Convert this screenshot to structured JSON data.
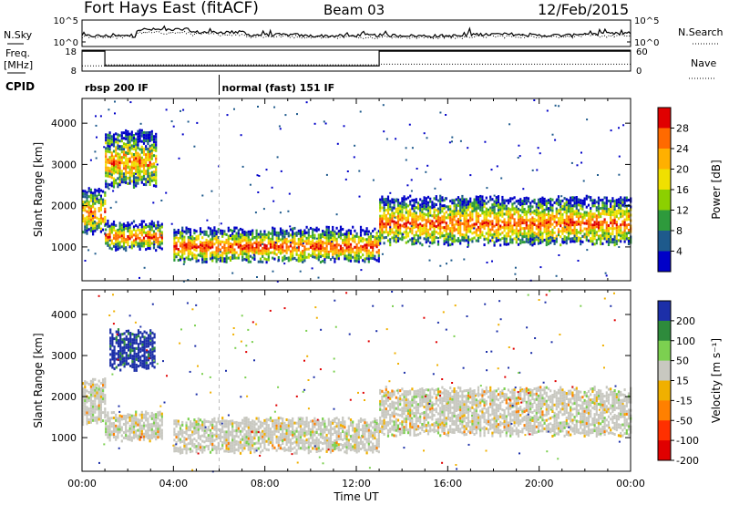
{
  "header": {
    "station": "Fort Hays East (fitACF)",
    "beam": "Beam 03",
    "date": "12/Feb/2015"
  },
  "strip_labels": {
    "nsky": "N.Sky",
    "nsearch": "N.Search",
    "freq_line1": "Freq.",
    "freq_line2": "[MHz]",
    "nave": "Nave",
    "cpid": "CPID"
  },
  "chart_data": [
    {
      "type": "line",
      "name": "noise",
      "y_left_ticks": [
        "10^5",
        "10^0"
      ],
      "y_right_ticks": [
        "10^5",
        "10^0"
      ],
      "nsky_level": [
        2.0,
        3.2,
        2.7,
        2.2,
        2.0,
        2.1,
        2.0,
        2.3,
        2.1,
        2.4
      ],
      "nsearch_level": [
        1.8,
        2.6,
        2.3,
        1.9,
        1.8,
        1.8,
        1.7,
        1.9,
        1.9,
        2.0
      ]
    },
    {
      "type": "line",
      "name": "frequency-nave",
      "y_left_ticks": [
        "18",
        "8"
      ],
      "y_right_ticks": [
        "60",
        "0"
      ],
      "freq_steps": [
        {
          "t": 0.0,
          "mhz": 17.5
        },
        {
          "t": 1.0,
          "mhz": 10.5
        },
        {
          "t": 13.0,
          "mhz": 17.5
        },
        {
          "t": 24.0,
          "mhz": 17.5
        }
      ],
      "nave_steps": [
        {
          "t": 0.0,
          "v": 15
        },
        {
          "t": 1.0,
          "v": 18
        },
        {
          "t": 13.0,
          "v": 20
        },
        {
          "t": 24.0,
          "v": 20
        }
      ]
    },
    {
      "type": "table",
      "name": "cpid",
      "segments": [
        {
          "start": 0.0,
          "label": "rbsp 200 IF"
        },
        {
          "start": 6.0,
          "label": "normal (fast) 151 IF"
        }
      ]
    },
    {
      "type": "heatmap",
      "name": "power",
      "ylabel": "Slant Range [km]",
      "yticks": [
        1000,
        2000,
        3000,
        4000
      ],
      "ylim": [
        180,
        4600
      ],
      "xlim": [
        0,
        24
      ],
      "colorbar": {
        "label": "Power [dB]",
        "ticks": [
          "28",
          "24",
          "20",
          "16",
          "12",
          "8",
          "4"
        ],
        "colors": [
          "#e00000",
          "#ff6a00",
          "#ffb000",
          "#f0e000",
          "#8cd000",
          "#2e9a3c",
          "#1e5a8c",
          "#0000c8"
        ]
      },
      "bands": [
        {
          "t0": 0.0,
          "t1": 1.0,
          "r0": 1400,
          "r1": 2400,
          "intensity": 0.55
        },
        {
          "t0": 1.0,
          "t1": 3.5,
          "r0": 1000,
          "r1": 1600,
          "intensity": 0.65
        },
        {
          "t0": 1.0,
          "t1": 3.2,
          "r0": 2500,
          "r1": 3800,
          "intensity": 0.2
        },
        {
          "t0": 4.0,
          "t1": 13.0,
          "r0": 700,
          "r1": 1450,
          "intensity": 0.75
        },
        {
          "t0": 13.0,
          "t1": 24.0,
          "r0": 1100,
          "r1": 2200,
          "intensity": 0.55
        }
      ]
    },
    {
      "type": "heatmap",
      "name": "velocity",
      "ylabel": "Slant Range [km]",
      "yticks": [
        1000,
        2000,
        3000,
        4000
      ],
      "ylim": [
        180,
        4600
      ],
      "xlim": [
        0,
        24
      ],
      "xlabel": "Time UT",
      "xticks": [
        "00:00",
        "04:00",
        "08:00",
        "12:00",
        "16:00",
        "20:00",
        "00:00"
      ],
      "colorbar": {
        "label": "Velocity [m s⁻¹]",
        "ticks": [
          "200",
          "100",
          "50",
          "15",
          "-15",
          "-50",
          "-100",
          "-200"
        ],
        "colors": [
          "#1c2fa8",
          "#2e8b3c",
          "#7cd050",
          "#c8c8c0",
          "#f0b000",
          "#ff8000",
          "#ff3000",
          "#e00000"
        ]
      },
      "bands": [
        {
          "t0": 0.0,
          "t1": 1.0,
          "r0": 1400,
          "r1": 2400,
          "kind": "gray"
        },
        {
          "t0": 1.0,
          "t1": 3.5,
          "r0": 1000,
          "r1": 1600,
          "kind": "gray"
        },
        {
          "t0": 1.2,
          "t1": 3.2,
          "r0": 2700,
          "r1": 3600,
          "kind": "blue"
        },
        {
          "t0": 4.0,
          "t1": 13.0,
          "r0": 700,
          "r1": 1450,
          "kind": "gray"
        },
        {
          "t0": 13.0,
          "t1": 24.0,
          "r0": 1100,
          "r1": 2200,
          "kind": "gray"
        }
      ]
    }
  ]
}
